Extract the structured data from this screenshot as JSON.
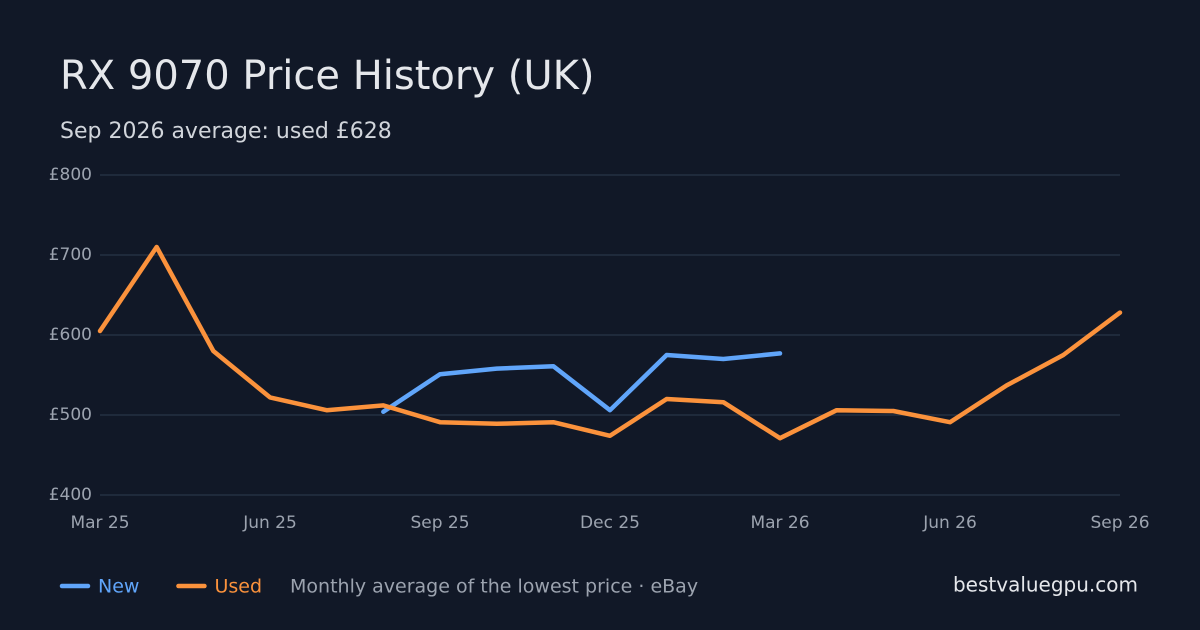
{
  "chart_data": {
    "type": "line",
    "title": "RX 9070 Price History (UK)",
    "subtitle": "Sep 2026 average: used £628",
    "categories": [
      "Mar 25",
      null,
      null,
      "Jun 25",
      null,
      null,
      "Sep 25",
      null,
      null,
      "Dec 25",
      null,
      null,
      "Mar 26",
      null,
      null,
      "Jun 26",
      null,
      null,
      "Sep 26"
    ],
    "series": [
      {
        "name": "New",
        "color": "#60a5fa",
        "values": [
          null,
          null,
          null,
          null,
          null,
          504,
          551,
          558,
          561,
          506,
          575,
          570,
          577,
          null,
          null,
          null,
          null,
          null,
          null
        ]
      },
      {
        "name": "Used",
        "color": "#fb923c",
        "values": [
          605,
          710,
          580,
          522,
          506,
          512,
          491,
          489,
          491,
          474,
          520,
          516,
          471,
          506,
          505,
          491,
          537,
          575,
          628
        ]
      }
    ],
    "ylim": [
      400,
      800
    ],
    "yticks": [
      {
        "value": 400,
        "label": "£400"
      },
      {
        "value": 500,
        "label": "£500"
      },
      {
        "value": 600,
        "label": "£600"
      },
      {
        "value": 700,
        "label": "£700"
      },
      {
        "value": 800,
        "label": "£800"
      }
    ],
    "grid": true,
    "note": "Monthly average of the lowest price · eBay",
    "source": "bestvaluegpu.com"
  }
}
